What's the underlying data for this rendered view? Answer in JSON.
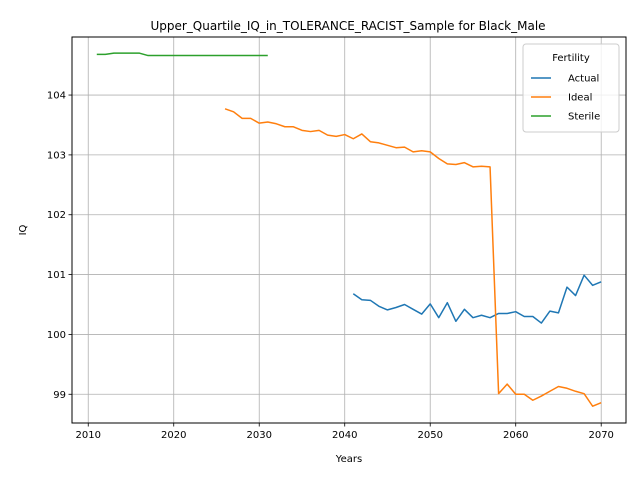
{
  "chart_data": {
    "type": "line",
    "title": "Upper_Quartile_IQ_in_TOLERANCE_RACIST_Sample for Black_Male",
    "xlabel": "Years",
    "ylabel": "IQ",
    "xlim": [
      2008.1,
      2072.9
    ],
    "ylim": [
      98.52,
      104.97
    ],
    "xticks": [
      2010,
      2020,
      2030,
      2040,
      2050,
      2060,
      2070
    ],
    "yticks": [
      99,
      100,
      101,
      102,
      103,
      104
    ],
    "grid": true,
    "legend": {
      "title": "Fertility",
      "position": "top-right"
    },
    "series": [
      {
        "name": "Actual",
        "color": "#1f77b4",
        "x": [
          2041,
          2042,
          2043,
          2044,
          2045,
          2046,
          2047,
          2048,
          2049,
          2050,
          2051,
          2052,
          2053,
          2054,
          2055,
          2056,
          2057,
          2058,
          2059,
          2060,
          2061,
          2062,
          2063,
          2064,
          2065,
          2066,
          2067,
          2068,
          2069,
          2070
        ],
        "y": [
          100.68,
          100.58,
          100.57,
          100.47,
          100.41,
          100.45,
          100.5,
          100.42,
          100.34,
          100.51,
          100.28,
          100.53,
          100.22,
          100.42,
          100.28,
          100.32,
          100.28,
          100.35,
          100.35,
          100.38,
          100.3,
          100.3,
          100.19,
          100.39,
          100.36,
          100.79,
          100.65,
          100.99,
          100.82,
          100.88
        ]
      },
      {
        "name": "Ideal",
        "color": "#ff7f0e",
        "x": [
          2026,
          2027,
          2028,
          2029,
          2030,
          2031,
          2032,
          2033,
          2034,
          2035,
          2036,
          2037,
          2038,
          2039,
          2040,
          2041,
          2042,
          2043,
          2044,
          2045,
          2046,
          2047,
          2048,
          2049,
          2050,
          2051,
          2052,
          2053,
          2054,
          2055,
          2056,
          2057,
          2058,
          2059,
          2060,
          2061,
          2062,
          2063,
          2064,
          2065,
          2066,
          2067,
          2068,
          2069,
          2070
        ],
        "y": [
          103.77,
          103.72,
          103.61,
          103.61,
          103.53,
          103.55,
          103.52,
          103.47,
          103.47,
          103.41,
          103.39,
          103.41,
          103.33,
          103.31,
          103.34,
          103.27,
          103.35,
          103.22,
          103.2,
          103.16,
          103.12,
          103.13,
          103.05,
          103.07,
          103.05,
          102.94,
          102.85,
          102.84,
          102.87,
          102.8,
          102.81,
          102.8,
          99.01,
          99.17,
          99.0,
          99.0,
          98.9,
          98.97,
          99.05,
          99.13,
          99.1,
          99.05,
          99.01,
          98.8,
          98.86
        ]
      },
      {
        "name": "Sterile",
        "color": "#2ca02c",
        "x": [
          2011,
          2012,
          2013,
          2014,
          2015,
          2016,
          2017,
          2018,
          2019,
          2020,
          2021,
          2022,
          2023,
          2024,
          2025,
          2026,
          2027,
          2028,
          2029,
          2030,
          2031
        ],
        "y": [
          104.68,
          104.68,
          104.7,
          104.7,
          104.7,
          104.7,
          104.66,
          104.66,
          104.66,
          104.66,
          104.66,
          104.66,
          104.66,
          104.66,
          104.66,
          104.66,
          104.66,
          104.66,
          104.66,
          104.66,
          104.66
        ]
      }
    ]
  }
}
